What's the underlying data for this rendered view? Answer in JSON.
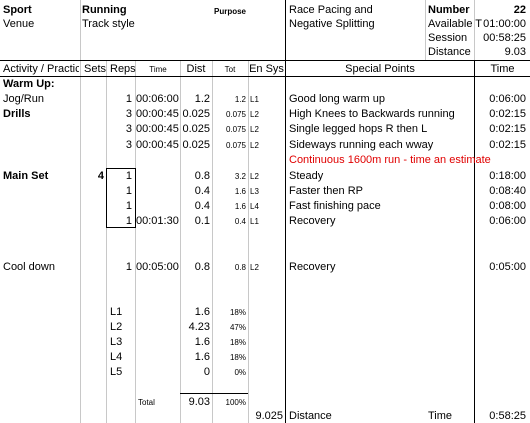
{
  "header": {
    "sport_label": "Sport",
    "sport_value": "Running",
    "purpose_label": "Purpose",
    "race_line1": "Race Pacing and",
    "race_line2": "Negative Splitting",
    "number_label": "Number",
    "number_value": "22",
    "venue_label": "Venue",
    "venue_value": "Track style",
    "available_label": "Available T",
    "available_value": "01:00:00",
    "session_label": "Session",
    "session_value": "00:58:25",
    "distance_label": "Distance",
    "distance_value": "9.03"
  },
  "columns": {
    "activity": "Activity / Practic",
    "sets": "Sets",
    "reps": "Reps",
    "time": "Time",
    "dist": "Dist",
    "tot": "Tot",
    "ensys": "En Sys",
    "special": "Special Points",
    "time2": "Time"
  },
  "sections": {
    "warmup": "Warm Up:",
    "drills": "Drills",
    "mainset": "Main Set",
    "mainset_sets": "4"
  },
  "rows": [
    {
      "activity": "Jog/Run",
      "reps": "1",
      "time": "00:06:00",
      "dist": "1.2",
      "tot": "1.2",
      "ensys": "L1",
      "special": "Good long warm up",
      "time2": "0:06:00"
    },
    {
      "activity": "",
      "reps": "3",
      "time": "00:00:45",
      "dist": "0.025",
      "tot": "0.075",
      "ensys": "L2",
      "special": "High Knees to Backwards running",
      "time2": "0:02:15"
    },
    {
      "activity": "",
      "reps": "3",
      "time": "00:00:45",
      "dist": "0.025",
      "tot": "0.075",
      "ensys": "L2",
      "special": "Single legged hops R then L",
      "time2": "0:02:15"
    },
    {
      "activity": "",
      "reps": "3",
      "time": "00:00:45",
      "dist": "0.025",
      "tot": "0.075",
      "ensys": "L2",
      "special": "Sideways running each wway",
      "time2": "0:02:15"
    },
    {
      "activity": "",
      "reps": "1",
      "time": "",
      "dist": "0.8",
      "tot": "3.2",
      "ensys": "L2",
      "special": "Steady",
      "time2": "0:18:00"
    },
    {
      "activity": "",
      "reps": "1",
      "time": "",
      "dist": "0.4",
      "tot": "1.6",
      "ensys": "L3",
      "special": "Faster then RP",
      "time2": "0:08:40"
    },
    {
      "activity": "",
      "reps": "1",
      "time": "",
      "dist": "0.4",
      "tot": "1.6",
      "ensys": "L4",
      "special": "Fast finishing pace",
      "time2": "0:08:00"
    },
    {
      "activity": "",
      "reps": "1",
      "time": "00:01:30",
      "dist": "0.1",
      "tot": "0.4",
      "ensys": "L1",
      "special": "Recovery",
      "time2": "0:06:00"
    },
    {
      "activity": "Cool down",
      "reps": "1",
      "time": "00:05:00",
      "dist": "0.8",
      "tot": "0.8",
      "ensys": "L2",
      "special": "Recovery",
      "time2": "0:05:00"
    }
  ],
  "note": "Continuous 1600m run - time an estimate",
  "summary": [
    {
      "level": "L1",
      "dist": "1.6",
      "pct": "18%"
    },
    {
      "level": "L2",
      "dist": "4.23",
      "pct": "47%"
    },
    {
      "level": "L3",
      "dist": "1.6",
      "pct": "18%"
    },
    {
      "level": "L4",
      "dist": "1.6",
      "pct": "18%"
    },
    {
      "level": "L5",
      "dist": "0",
      "pct": "0%"
    }
  ],
  "total": {
    "label": "Total",
    "dist": "9.03",
    "pct": "100%"
  },
  "footer": {
    "tot": "9.025",
    "distance_label": "Distance",
    "time_label": "Time",
    "time_value": "0:58:25"
  }
}
